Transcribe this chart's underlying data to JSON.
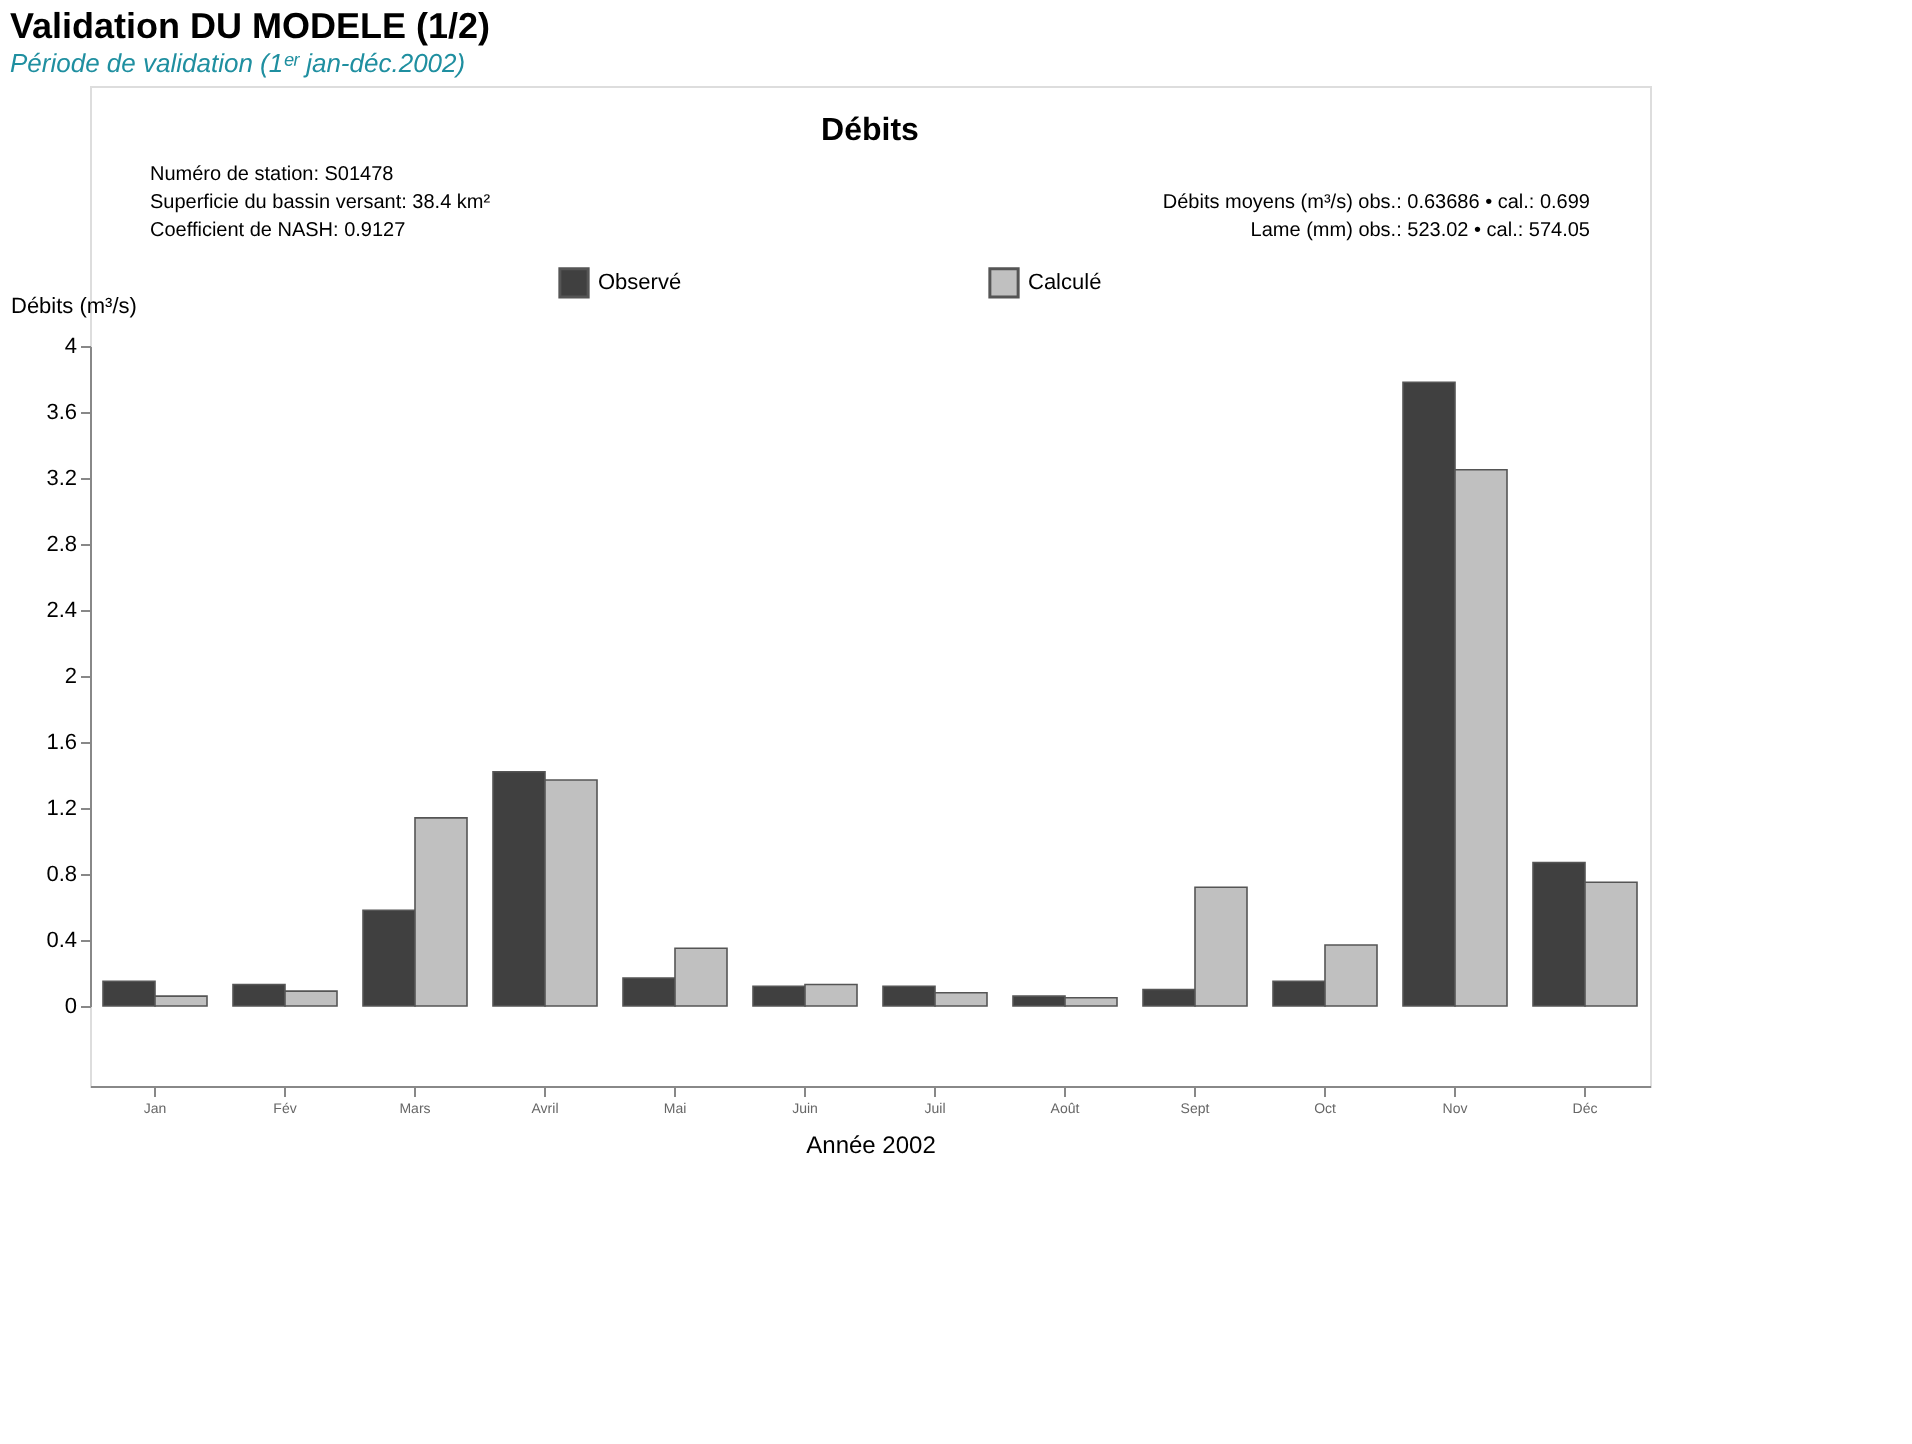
{
  "chart_data": {
    "type": "bar",
    "title": "Validation DU MODELE (1/2)",
    "subtitle": "Période de validation (1ᵉʳ jan-déc.2002)",
    "annotations": [
      "Débits",
      "Numéro de station:  S01478",
      "Superficie du bassin versant: 38.4 km²",
      "Coefficient de NASH: 0.9127",
      "Débits moyens (m³/s) obs.: 0.63686 • cal.: 0.699",
      "Lame (mm)  obs.: 523.02 • cal.: 574.05"
    ],
    "xlabel": "Année 2002",
    "ylabel": "Débits (m³/s)",
    "categories": [
      "Jan",
      "Fév",
      "Mars",
      "Avril",
      "Mai",
      "Juin",
      "Juil",
      "Août",
      "Sept",
      "Oct",
      "Nov",
      "Déc"
    ],
    "series": [
      {
        "name": "Observé",
        "color": "#404040",
        "values": [
          0.15,
          0.13,
          0.58,
          1.42,
          0.17,
          0.12,
          0.12,
          0.06,
          0.1,
          0.15,
          3.78,
          0.87
        ]
      },
      {
        "name": "Calculé",
        "color": "#c0c0c0",
        "values": [
          0.06,
          0.09,
          1.14,
          1.37,
          0.35,
          0.13,
          0.08,
          0.05,
          0.72,
          0.37,
          3.25,
          0.75
        ]
      }
    ],
    "ylim": [
      0,
      4
    ],
    "yticks": [
      0,
      0.4,
      0.8,
      1.2,
      1.6,
      2,
      2.4,
      2.8,
      3.2,
      3.6,
      4
    ],
    "grid": false,
    "legend": "top"
  }
}
